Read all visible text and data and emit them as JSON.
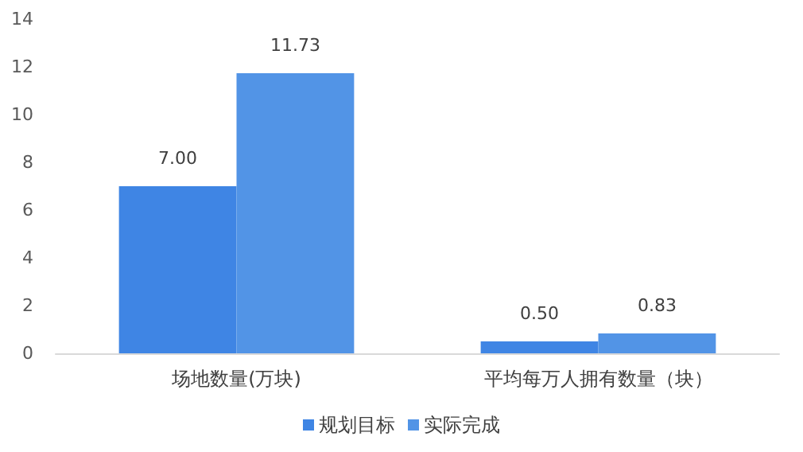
{
  "chart_data": {
    "type": "bar",
    "categories": [
      "场地数量(万块)",
      "平均每万人拥有数量（块）"
    ],
    "series": [
      {
        "name": "规划目标",
        "color": "#3f85e4",
        "values": [
          7.0,
          0.5
        ],
        "value_labels": [
          "7.00",
          "0.50"
        ]
      },
      {
        "name": "实际完成",
        "color": "#5294e6",
        "values": [
          11.73,
          0.83
        ],
        "value_labels": [
          "11.73",
          "0.83"
        ]
      }
    ],
    "ylim": [
      0,
      14
    ],
    "yticks": [
      0,
      2,
      4,
      6,
      8,
      10,
      12,
      14
    ],
    "grid": false,
    "legend": "bottom"
  }
}
